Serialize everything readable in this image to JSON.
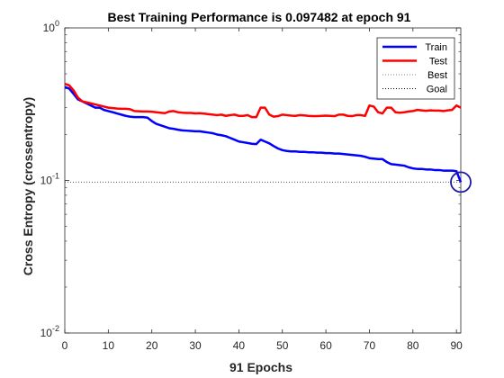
{
  "chart_data": {
    "type": "line",
    "title": "Best Training Performance is 0.097482 at epoch 91",
    "xlabel": "91 Epochs",
    "ylabel": "Cross Entropy  (crossentropy)",
    "xlim": [
      0,
      91
    ],
    "ylim": [
      0.01,
      1
    ],
    "yscale": "log",
    "xticks": [
      0,
      10,
      20,
      30,
      40,
      50,
      60,
      70,
      80,
      90
    ],
    "yticks": [
      {
        "value": 0.01,
        "base": "10",
        "exp": "-2"
      },
      {
        "value": 0.1,
        "base": "10",
        "exp": "-1"
      },
      {
        "value": 1,
        "base": "10",
        "exp": "0"
      }
    ],
    "legend_position": "top-right",
    "best": {
      "epoch": 91,
      "value": 0.097482
    },
    "goal": 0,
    "series": [
      {
        "name": "Train",
        "color": "#0000ff",
        "x": [
          0,
          1,
          2,
          3,
          4,
          5,
          6,
          7,
          8,
          9,
          10,
          11,
          12,
          13,
          14,
          15,
          16,
          17,
          18,
          19,
          20,
          21,
          22,
          23,
          24,
          25,
          26,
          27,
          28,
          29,
          30,
          31,
          32,
          33,
          34,
          35,
          36,
          37,
          38,
          39,
          40,
          41,
          42,
          43,
          44,
          45,
          46,
          47,
          48,
          49,
          50,
          51,
          52,
          53,
          54,
          55,
          56,
          57,
          58,
          59,
          60,
          61,
          62,
          63,
          64,
          65,
          66,
          67,
          68,
          69,
          70,
          71,
          72,
          73,
          74,
          75,
          76,
          77,
          78,
          79,
          80,
          81,
          82,
          83,
          84,
          85,
          86,
          87,
          88,
          89,
          90,
          91
        ],
        "values": [
          0.41,
          0.4,
          0.37,
          0.34,
          0.33,
          0.32,
          0.31,
          0.3,
          0.3,
          0.29,
          0.285,
          0.28,
          0.275,
          0.27,
          0.265,
          0.262,
          0.26,
          0.26,
          0.26,
          0.258,
          0.245,
          0.235,
          0.23,
          0.225,
          0.22,
          0.218,
          0.215,
          0.213,
          0.212,
          0.211,
          0.21,
          0.21,
          0.208,
          0.206,
          0.204,
          0.2,
          0.198,
          0.195,
          0.19,
          0.185,
          0.18,
          0.178,
          0.176,
          0.174,
          0.173,
          0.185,
          0.18,
          0.175,
          0.168,
          0.162,
          0.158,
          0.156,
          0.155,
          0.155,
          0.154,
          0.154,
          0.153,
          0.153,
          0.152,
          0.152,
          0.151,
          0.151,
          0.15,
          0.15,
          0.149,
          0.148,
          0.147,
          0.146,
          0.145,
          0.143,
          0.14,
          0.139,
          0.138,
          0.138,
          0.132,
          0.128,
          0.127,
          0.126,
          0.125,
          0.122,
          0.12,
          0.119,
          0.119,
          0.118,
          0.118,
          0.117,
          0.117,
          0.116,
          0.116,
          0.116,
          0.115,
          0.0975
        ]
      },
      {
        "name": "Test",
        "color": "#ff0000",
        "x": [
          0,
          1,
          2,
          3,
          4,
          5,
          6,
          7,
          8,
          9,
          10,
          11,
          12,
          13,
          14,
          15,
          16,
          17,
          18,
          19,
          20,
          21,
          22,
          23,
          24,
          25,
          26,
          27,
          28,
          29,
          30,
          31,
          32,
          33,
          34,
          35,
          36,
          37,
          38,
          39,
          40,
          41,
          42,
          43,
          44,
          45,
          46,
          47,
          48,
          49,
          50,
          51,
          52,
          53,
          54,
          55,
          56,
          57,
          58,
          59,
          60,
          61,
          62,
          63,
          64,
          65,
          66,
          67,
          68,
          69,
          70,
          71,
          72,
          73,
          74,
          75,
          76,
          77,
          78,
          79,
          80,
          81,
          82,
          83,
          84,
          85,
          86,
          87,
          88,
          89,
          90,
          91
        ],
        "values": [
          0.43,
          0.42,
          0.39,
          0.35,
          0.33,
          0.325,
          0.32,
          0.315,
          0.31,
          0.305,
          0.3,
          0.298,
          0.296,
          0.295,
          0.295,
          0.293,
          0.285,
          0.284,
          0.283,
          0.283,
          0.282,
          0.28,
          0.278,
          0.276,
          0.283,
          0.285,
          0.28,
          0.278,
          0.277,
          0.277,
          0.275,
          0.276,
          0.274,
          0.272,
          0.27,
          0.268,
          0.27,
          0.265,
          0.268,
          0.27,
          0.265,
          0.265,
          0.268,
          0.26,
          0.26,
          0.3,
          0.3,
          0.27,
          0.262,
          0.264,
          0.27,
          0.268,
          0.266,
          0.265,
          0.268,
          0.267,
          0.265,
          0.264,
          0.264,
          0.265,
          0.266,
          0.265,
          0.264,
          0.27,
          0.27,
          0.265,
          0.264,
          0.268,
          0.268,
          0.265,
          0.31,
          0.305,
          0.28,
          0.275,
          0.3,
          0.3,
          0.28,
          0.278,
          0.28,
          0.283,
          0.285,
          0.29,
          0.288,
          0.286,
          0.288,
          0.287,
          0.287,
          0.285,
          0.288,
          0.29,
          0.31,
          0.3
        ]
      },
      {
        "name": "Best",
        "color": "#7f7f7f",
        "style": "dotted"
      },
      {
        "name": "Goal",
        "color": "#000000",
        "style": "dotted"
      }
    ]
  }
}
